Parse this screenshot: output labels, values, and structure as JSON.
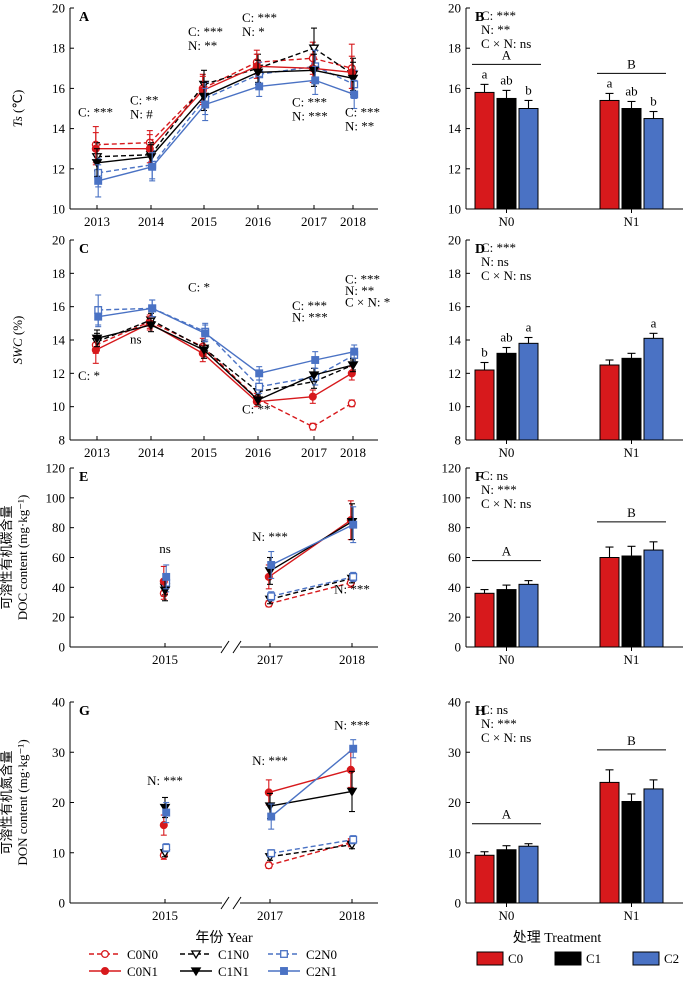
{
  "figure": {
    "x_title_left": "年份 Year",
    "x_title_right": "处理 Treatment"
  },
  "legend_left": [
    {
      "label": "C0N0",
      "color": "#d7191c",
      "marker": "circle",
      "filled": false,
      "dashed": true
    },
    {
      "label": "C1N0",
      "color": "#000000",
      "marker": "triangle",
      "filled": false,
      "dashed": true
    },
    {
      "label": "C2N0",
      "color": "#4a72c4",
      "marker": "square",
      "filled": false,
      "dashed": true
    },
    {
      "label": "C0N1",
      "color": "#d7191c",
      "marker": "circle",
      "filled": true,
      "dashed": false
    },
    {
      "label": "C1N1",
      "color": "#000000",
      "marker": "triangle",
      "filled": true,
      "dashed": false
    },
    {
      "label": "C2N1",
      "color": "#4a72c4",
      "marker": "square",
      "filled": true,
      "dashed": false
    }
  ],
  "legend_right": [
    {
      "label": "C0",
      "color": "#d7191c"
    },
    {
      "label": "C1",
      "color": "#000000"
    },
    {
      "label": "C2",
      "color": "#4a72c4"
    }
  ],
  "chart_data": [
    {
      "id": "A",
      "type": "line",
      "panel_label": "A",
      "ylabel_parts": [
        "Ts",
        " (℃)"
      ],
      "ylim": [
        10,
        20
      ],
      "yticks": [
        10,
        12,
        14,
        16,
        18,
        20
      ],
      "x": [
        "2013",
        "2014",
        "2015",
        "2016",
        "2017",
        "2018"
      ],
      "series": [
        {
          "name": "C0N0",
          "values": [
            13.2,
            13.3,
            16.0,
            17.3,
            17.5,
            17.0
          ],
          "err": [
            0.9,
            0.6,
            0.7,
            0.6,
            0.8,
            1.2
          ]
        },
        {
          "name": "C1N0",
          "values": [
            12.6,
            12.7,
            16.2,
            17.0,
            18.0,
            16.7
          ],
          "err": [
            0.7,
            0.6,
            0.7,
            0.7,
            1.0,
            0.8
          ]
        },
        {
          "name": "C2N0",
          "values": [
            11.8,
            12.2,
            15.5,
            16.7,
            17.1,
            16.2
          ],
          "err": [
            0.7,
            0.7,
            0.8,
            0.6,
            0.8,
            0.7
          ]
        },
        {
          "name": "C0N1",
          "values": [
            13.0,
            13.0,
            15.9,
            17.1,
            17.0,
            16.8
          ],
          "err": [
            0.8,
            0.7,
            0.7,
            0.6,
            0.7,
            0.8
          ]
        },
        {
          "name": "C1N1",
          "values": [
            12.3,
            12.6,
            15.6,
            16.8,
            16.9,
            16.5
          ],
          "err": [
            0.7,
            0.6,
            0.7,
            0.6,
            0.8,
            0.8
          ]
        },
        {
          "name": "C2N1",
          "values": [
            11.4,
            12.1,
            15.2,
            16.1,
            16.4,
            15.7
          ],
          "err": [
            0.8,
            0.7,
            0.8,
            0.5,
            0.7,
            0.7
          ]
        }
      ],
      "annotations": [
        {
          "text": "C: ***",
          "x": 0,
          "y": 14.6
        },
        {
          "text": "C: **",
          "x": 1,
          "y": 15.2
        },
        {
          "text": "N: #",
          "x": 1,
          "y": 14.5
        },
        {
          "text": "C: ***",
          "x": 2,
          "y": 18.6
        },
        {
          "text": "N: **",
          "x": 2,
          "y": 17.9
        },
        {
          "text": "C: ***",
          "x": 3,
          "y": 19.3
        },
        {
          "text": "N: *",
          "x": 3,
          "y": 18.6
        },
        {
          "text": "C: ***",
          "x": 4,
          "y": 15.1
        },
        {
          "text": "N: ***",
          "x": 4,
          "y": 14.4
        },
        {
          "text": "C: ***",
          "x": 5,
          "y": 14.6
        },
        {
          "text": "N: **",
          "x": 5,
          "y": 13.9
        }
      ]
    },
    {
      "id": "B",
      "type": "bar",
      "panel_label": "B",
      "ylim": [
        10,
        20
      ],
      "yticks": [
        10,
        12,
        14,
        16,
        18,
        20
      ],
      "categories": [
        "N0",
        "N1"
      ],
      "series": [
        {
          "name": "C0",
          "values": [
            15.8,
            15.4
          ],
          "err": [
            0.4,
            0.35
          ]
        },
        {
          "name": "C1",
          "values": [
            15.5,
            15.0
          ],
          "err": [
            0.4,
            0.35
          ]
        },
        {
          "name": "C2",
          "values": [
            15.0,
            14.5
          ],
          "err": [
            0.4,
            0.35
          ]
        }
      ],
      "letters": [
        [
          "a",
          "ab",
          "b"
        ],
        [
          "a",
          "ab",
          "b"
        ]
      ],
      "group_letters": [
        "A",
        "B"
      ],
      "stats": [
        "C: ***",
        "N: **",
        "C × N: ns"
      ]
    },
    {
      "id": "C",
      "type": "line",
      "panel_label": "C",
      "ylabel_parts": [
        "SWC",
        " (%)"
      ],
      "ylim": [
        8,
        20
      ],
      "yticks": [
        8,
        10,
        12,
        14,
        16,
        18,
        20
      ],
      "x": [
        "2013",
        "2014",
        "2015",
        "2016",
        "2017",
        "2018"
      ],
      "series": [
        {
          "name": "C0N0",
          "values": [
            13.7,
            15.1,
            13.6,
            10.5,
            8.8,
            10.2
          ],
          "err": [
            0.5,
            0.4,
            0.5,
            0.3,
            0.2,
            0.2
          ]
        },
        {
          "name": "C1N0",
          "values": [
            13.9,
            15.2,
            13.5,
            10.9,
            11.5,
            12.5
          ],
          "err": [
            0.5,
            0.4,
            0.5,
            0.3,
            0.4,
            0.3
          ]
        },
        {
          "name": "C2N0",
          "values": [
            15.8,
            15.9,
            14.5,
            11.2,
            11.8,
            13.1
          ],
          "err": [
            0.9,
            0.5,
            0.5,
            0.4,
            0.5,
            0.4
          ]
        },
        {
          "name": "C0N1",
          "values": [
            13.4,
            15.0,
            13.2,
            10.3,
            10.6,
            12.0
          ],
          "err": [
            0.8,
            0.4,
            0.5,
            0.3,
            0.4,
            0.4
          ]
        },
        {
          "name": "C1N1",
          "values": [
            14.1,
            14.9,
            13.4,
            10.4,
            11.9,
            12.5
          ],
          "err": [
            0.5,
            0.4,
            0.5,
            0.3,
            0.4,
            0.4
          ]
        },
        {
          "name": "C2N1",
          "values": [
            15.4,
            15.9,
            14.4,
            12.0,
            12.8,
            13.3
          ],
          "err": [
            0.6,
            0.5,
            0.5,
            0.4,
            0.5,
            0.4
          ]
        }
      ],
      "annotations": [
        {
          "text": "C: *",
          "x": 0,
          "y": 11.6
        },
        {
          "text": "ns",
          "x": 1,
          "y": 13.8
        },
        {
          "text": "C: *",
          "x": 2,
          "y": 16.9
        },
        {
          "text": "C: **",
          "x": 3,
          "y": 9.6
        },
        {
          "text": "C: ***",
          "x": 4,
          "y": 15.8
        },
        {
          "text": "N: ***",
          "x": 4,
          "y": 15.1
        },
        {
          "text": "C: ***",
          "x": 5,
          "y": 17.4
        },
        {
          "text": "N: **",
          "x": 5,
          "y": 16.7
        },
        {
          "text": "C × N: *",
          "x": 5,
          "y": 16.0
        }
      ]
    },
    {
      "id": "D",
      "type": "bar",
      "panel_label": "D",
      "ylim": [
        8,
        20
      ],
      "yticks": [
        8,
        10,
        12,
        14,
        16,
        18,
        20
      ],
      "categories": [
        "N0",
        "N1"
      ],
      "series": [
        {
          "name": "C0",
          "values": [
            12.2,
            12.5
          ],
          "err": [
            0.45,
            0.3
          ]
        },
        {
          "name": "C1",
          "values": [
            13.2,
            12.9
          ],
          "err": [
            0.35,
            0.3
          ]
        },
        {
          "name": "C2",
          "values": [
            13.8,
            14.1
          ],
          "err": [
            0.35,
            0.3
          ]
        }
      ],
      "letters": [
        [
          "b",
          "ab",
          "a"
        ],
        [
          "",
          "",
          "a"
        ]
      ],
      "group_letters": [
        "",
        ""
      ],
      "stats": [
        "C: ***",
        "N: ns",
        "C × N: ns"
      ]
    },
    {
      "id": "E",
      "type": "line",
      "panel_label": "E",
      "ylabel_lines": [
        "可溶性有机碳含量",
        "DOC content (mg·kg⁻¹)"
      ],
      "ylim": [
        0,
        120
      ],
      "yticks": [
        0,
        20,
        40,
        60,
        80,
        100,
        120
      ],
      "x": [
        "2015",
        "2017",
        "2018"
      ],
      "axis_break": true,
      "series": [
        {
          "name": "C0N0",
          "values": [
            36,
            29,
            43
          ],
          "err": [
            4,
            2,
            3
          ]
        },
        {
          "name": "C1N0",
          "values": [
            40,
            32,
            46
          ],
          "err": [
            5,
            3,
            3
          ]
        },
        {
          "name": "C2N0",
          "values": [
            43,
            34,
            47
          ],
          "err": [
            6,
            3,
            3
          ]
        },
        {
          "name": "C0N1",
          "values": [
            44,
            47,
            85
          ],
          "err": [
            10,
            8,
            13
          ]
        },
        {
          "name": "C1N1",
          "values": [
            38,
            51,
            84
          ],
          "err": [
            7,
            9,
            12
          ]
        },
        {
          "name": "C2N1",
          "values": [
            47,
            55,
            82
          ],
          "err": [
            8,
            9,
            12
          ]
        }
      ],
      "annotations": [
        {
          "text": "ns",
          "x": 0,
          "y": 63
        },
        {
          "text": "N: ***",
          "x": 1,
          "y": 71
        },
        {
          "text": "N: ***",
          "x": 2,
          "y": 36
        }
      ]
    },
    {
      "id": "F",
      "type": "bar",
      "panel_label": "F",
      "ylim": [
        0,
        120
      ],
      "yticks": [
        0,
        20,
        40,
        60,
        80,
        100,
        120
      ],
      "categories": [
        "N0",
        "N1"
      ],
      "series": [
        {
          "name": "C0",
          "values": [
            36,
            60
          ],
          "err": [
            2.5,
            7
          ]
        },
        {
          "name": "C1",
          "values": [
            38.5,
            61
          ],
          "err": [
            3,
            6.5
          ]
        },
        {
          "name": "C2",
          "values": [
            42,
            65
          ],
          "err": [
            2.5,
            5.5
          ]
        }
      ],
      "letters": [
        [
          "",
          "",
          ""
        ],
        [
          "",
          "",
          ""
        ]
      ],
      "group_letters": [
        "A",
        "B"
      ],
      "stats": [
        "C: ns",
        "N: ***",
        "C × N: ns"
      ]
    },
    {
      "id": "G",
      "type": "line",
      "panel_label": "G",
      "ylabel_lines": [
        "可溶性有机氮含量",
        "DON content (mg·kg⁻¹)"
      ],
      "ylim": [
        0,
        40
      ],
      "yticks": [
        0,
        10,
        20,
        30,
        40
      ],
      "x": [
        "2015",
        "2017",
        "2018"
      ],
      "axis_break": true,
      "series": [
        {
          "name": "C0N0",
          "values": [
            9.5,
            7.5,
            12.0
          ],
          "err": [
            0.8,
            0.6,
            0.8
          ]
        },
        {
          "name": "C1N0",
          "values": [
            10.0,
            9.2,
            11.6
          ],
          "err": [
            0.8,
            0.7,
            0.8
          ]
        },
        {
          "name": "C2N0",
          "values": [
            11.0,
            9.9,
            12.6
          ],
          "err": [
            0.8,
            0.7,
            0.8
          ]
        },
        {
          "name": "C0N1",
          "values": [
            15.5,
            22.0,
            26.5
          ],
          "err": [
            2.0,
            2.5,
            3.5
          ]
        },
        {
          "name": "C1N1",
          "values": [
            19.0,
            19.3,
            22.2
          ],
          "err": [
            2.0,
            2.5,
            4.0
          ]
        },
        {
          "name": "C2N1",
          "values": [
            18.0,
            17.2,
            30.7
          ],
          "err": [
            2.0,
            2.5,
            1.8
          ]
        }
      ],
      "annotations": [
        {
          "text": "N: ***",
          "x": 0,
          "y": 23.5
        },
        {
          "text": "N: ***",
          "x": 1,
          "y": 27.5
        },
        {
          "text": "N: ***",
          "x": 2,
          "y": 34.5
        }
      ]
    },
    {
      "id": "H",
      "type": "bar",
      "panel_label": "H",
      "ylim": [
        0,
        40
      ],
      "yticks": [
        0,
        10,
        20,
        30,
        40
      ],
      "categories": [
        "N0",
        "N1"
      ],
      "series": [
        {
          "name": "C0",
          "values": [
            9.5,
            24.0
          ],
          "err": [
            0.7,
            2.5
          ]
        },
        {
          "name": "C1",
          "values": [
            10.6,
            20.2
          ],
          "err": [
            0.8,
            1.5
          ]
        },
        {
          "name": "C2",
          "values": [
            11.3,
            22.7
          ],
          "err": [
            0.5,
            1.8
          ]
        }
      ],
      "letters": [
        [
          "",
          "",
          ""
        ],
        [
          "",
          "",
          ""
        ]
      ],
      "group_letters": [
        "A",
        "B"
      ],
      "stats": [
        "C: ns",
        "N: ***",
        "C × N: ns"
      ]
    }
  ]
}
